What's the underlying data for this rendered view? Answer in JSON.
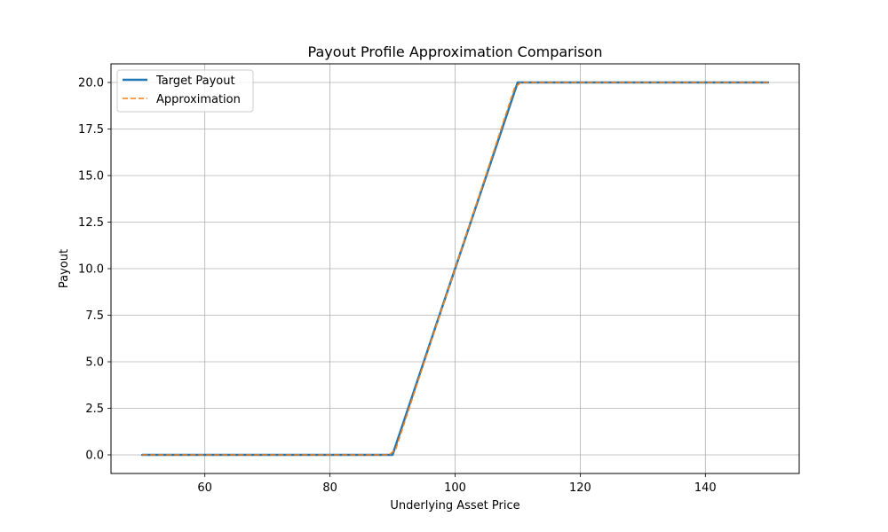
{
  "chart_data": {
    "type": "line",
    "title": "Payout Profile Approximation Comparison",
    "xlabel": "Underlying Asset Price",
    "ylabel": "Payout",
    "xlim": [
      45,
      155
    ],
    "ylim": [
      -1.0,
      21.0
    ],
    "xticks": [
      60,
      80,
      100,
      120,
      140
    ],
    "xtick_labels": [
      "60",
      "80",
      "100",
      "120",
      "140"
    ],
    "yticks": [
      0,
      2.5,
      5,
      7.5,
      10,
      12.5,
      15,
      17.5,
      20
    ],
    "ytick_labels": [
      "0.0",
      "2.5",
      "5.0",
      "7.5",
      "10.0",
      "12.5",
      "15.0",
      "17.5",
      "20.0"
    ],
    "grid": true,
    "legend_position": "upper-left",
    "series": [
      {
        "name": "Target Payout",
        "color": "#1f77b4",
        "style": "solid",
        "x": [
          50,
          90,
          110,
          150
        ],
        "y": [
          0,
          0,
          20,
          20
        ]
      },
      {
        "name": "Approximation",
        "color": "#ff7f0e",
        "style": "dashed",
        "x": [
          50,
          89.5,
          90.5,
          109.5,
          110.5,
          150
        ],
        "y": [
          0,
          0,
          0.3,
          19.7,
          20,
          20
        ]
      }
    ]
  }
}
